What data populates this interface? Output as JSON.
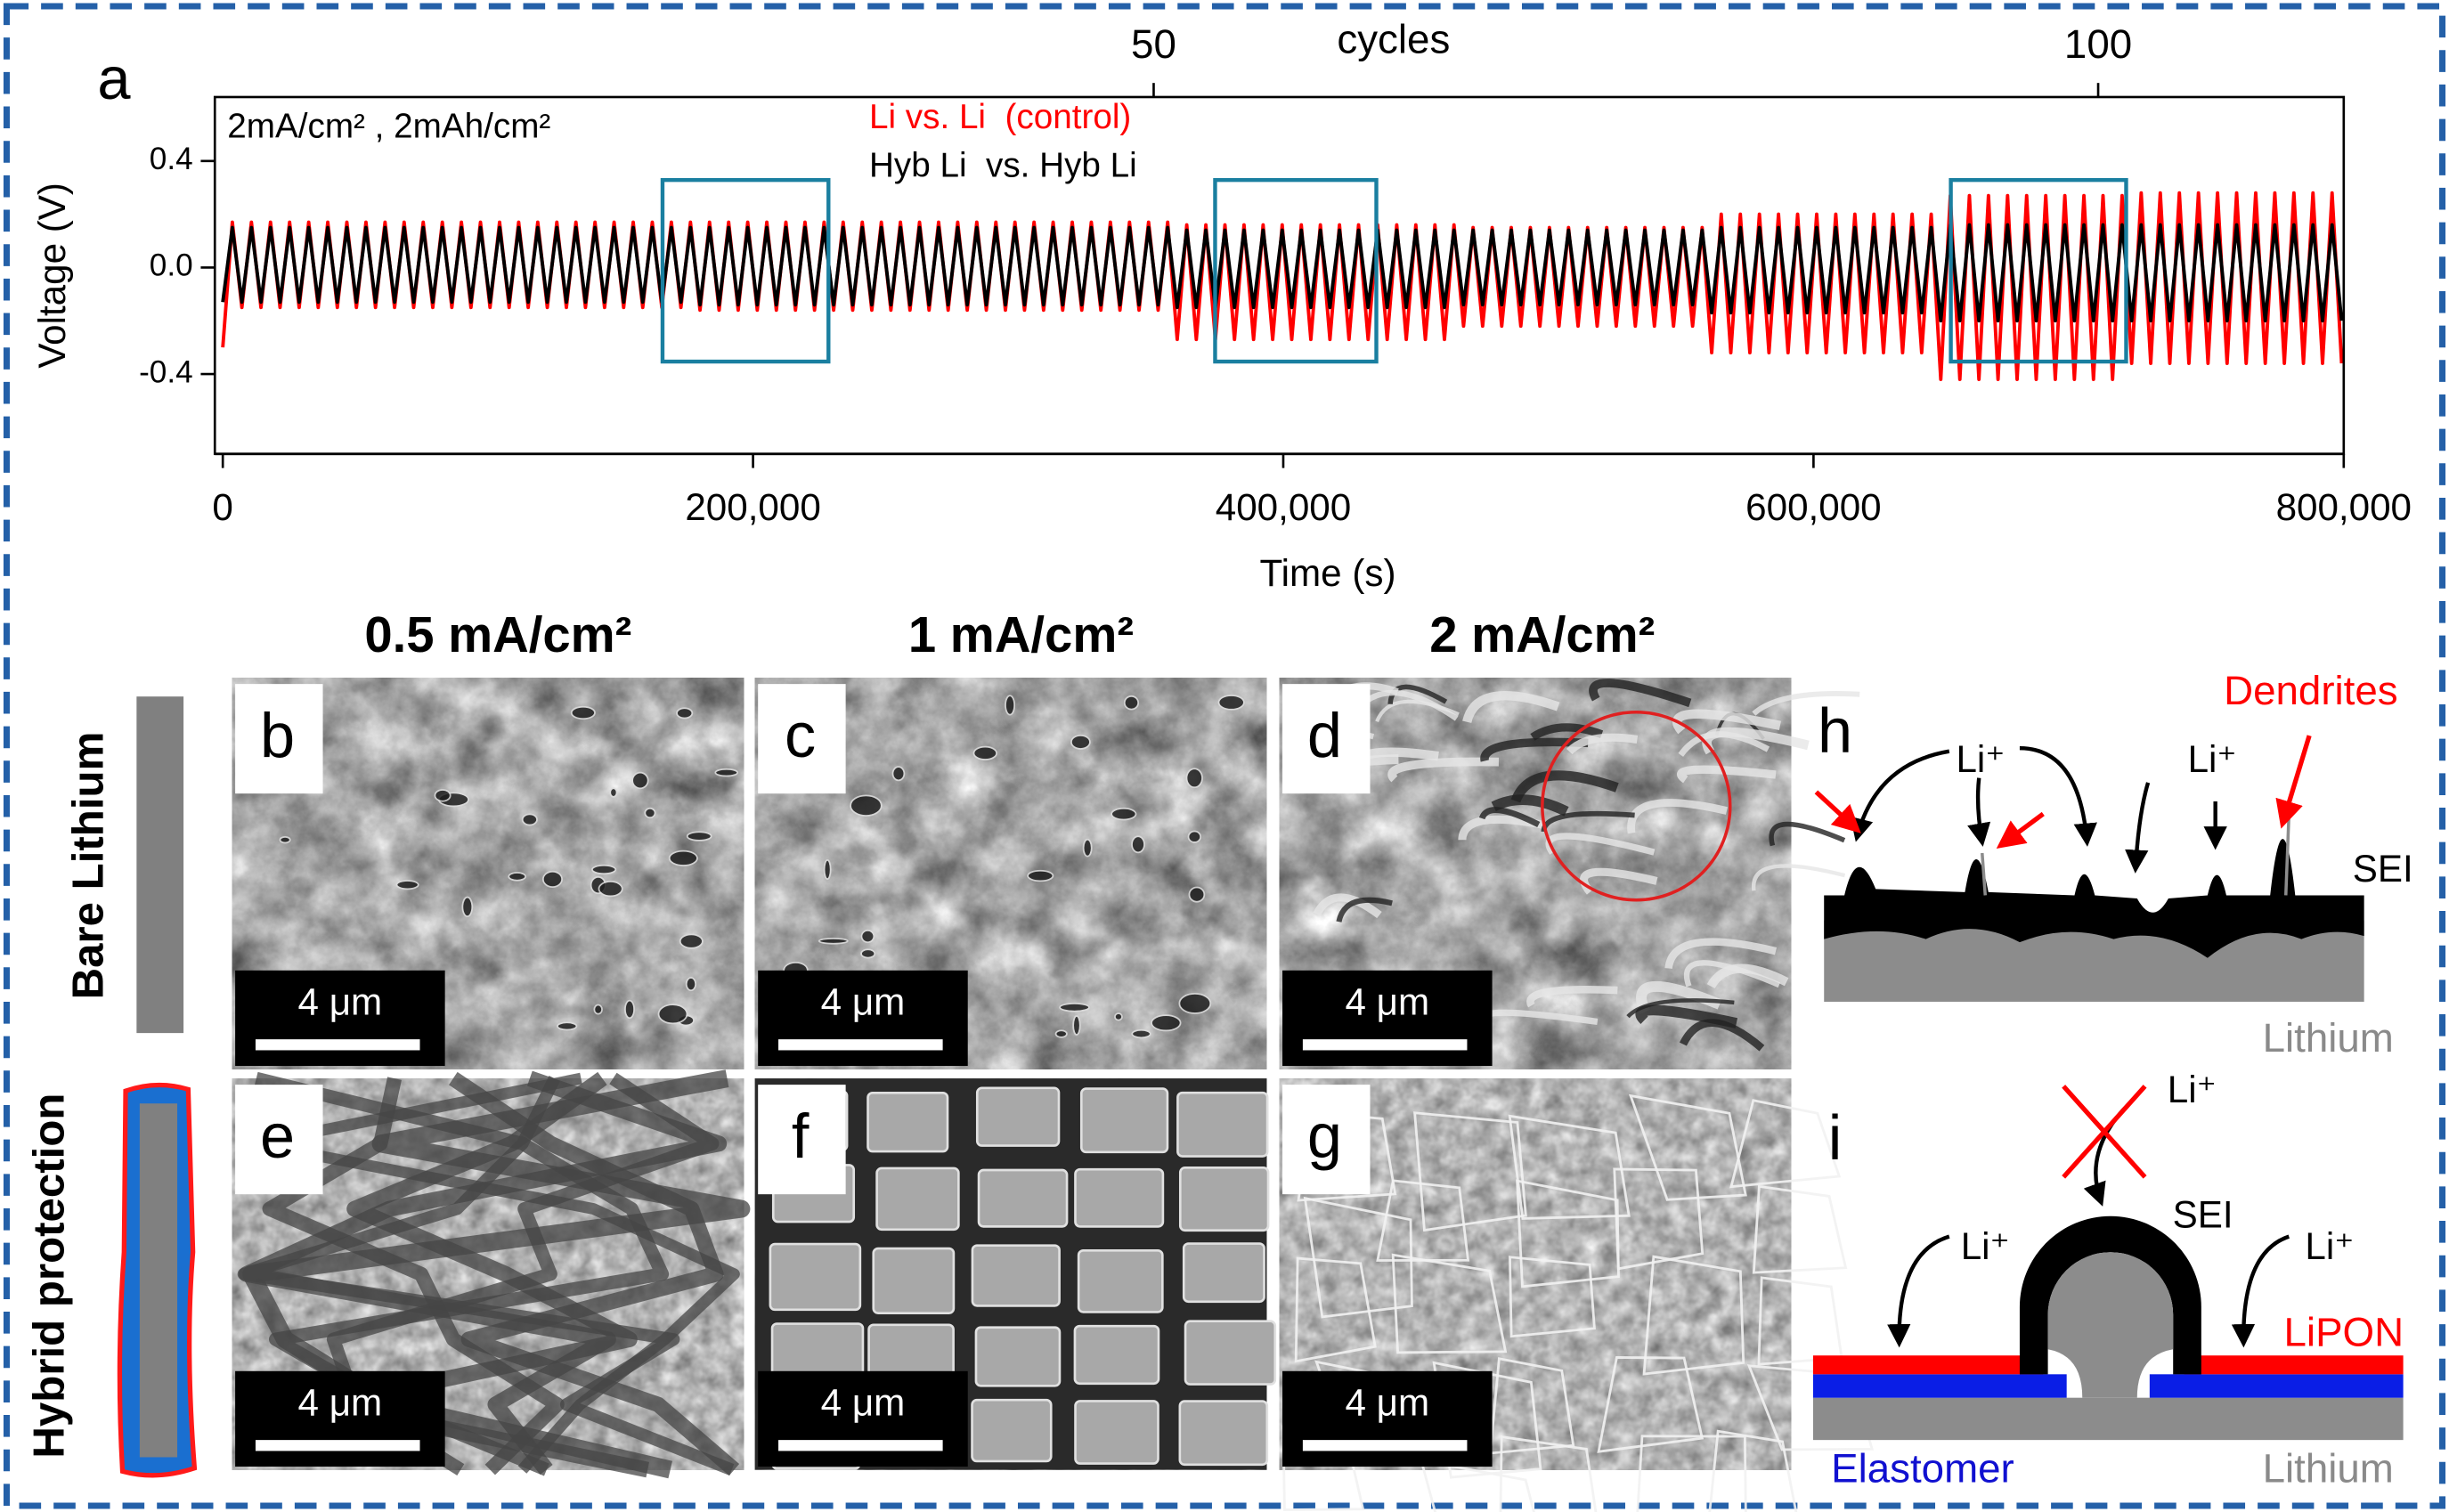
{
  "chart_data": {
    "type": "line",
    "panel_label": "a",
    "annotation": "2mA/cm² , 2mAh/cm²",
    "xlabel": "Time (s)",
    "ylabel": "Voltage (V)",
    "x2label": "cycles",
    "x": [
      0,
      3600,
      7200,
      10800,
      14400,
      18000,
      21600,
      25200,
      28800,
      32400,
      36000,
      39600,
      43200,
      46800,
      50400,
      54000,
      57600,
      61200,
      64800,
      68400,
      72000,
      75600,
      79200,
      82800,
      86400,
      90000,
      93600,
      97200,
      100800,
      104400,
      108000,
      111600,
      115200,
      118800,
      122400,
      126000,
      129600,
      133200,
      136800,
      140400,
      144000,
      147600,
      151200,
      154800,
      158400,
      162000,
      165600,
      169200,
      172800,
      176400,
      180000,
      183600,
      187200,
      190800,
      194400,
      198000,
      201600,
      205200,
      208800,
      212400,
      216000,
      219600,
      223200,
      226800,
      230400,
      234000,
      237600,
      241200,
      244800,
      248400,
      252000,
      255600,
      259200,
      262800,
      266400,
      270000,
      273600,
      277200,
      280800,
      284400,
      288000,
      291600,
      295200,
      298800,
      302400,
      306000,
      309600,
      313200,
      316800,
      320400,
      324000,
      327600,
      331200,
      334800,
      338400,
      342000,
      345600,
      349200,
      352800,
      356400,
      360000,
      363600,
      367200,
      370800,
      374400,
      378000,
      381600,
      385200,
      388800,
      392400,
      396000,
      399600,
      403200,
      406800,
      410400,
      414000,
      417600,
      421200,
      424800,
      428400,
      432000,
      435600,
      439200,
      442800,
      446400,
      450000,
      453600,
      457200,
      460800,
      464400,
      468000,
      471600,
      475200,
      478800,
      482400,
      486000,
      489600,
      493200,
      496800,
      500400,
      504000,
      507600,
      511200,
      514800,
      518400,
      522000,
      525600,
      529200,
      532800,
      536400,
      540000,
      543600,
      547200,
      550800,
      554400,
      558000,
      561600,
      565200,
      568800,
      572400,
      576000,
      579600,
      583200,
      586800,
      590400,
      594000,
      597600,
      601200,
      604800,
      608400,
      612000,
      615600,
      619200,
      622800,
      626400,
      630000,
      633600,
      637200,
      640800,
      644400,
      648000,
      651600,
      655200,
      658800,
      662400,
      666000,
      669600,
      673200,
      676800,
      680400,
      684000,
      687600,
      691200,
      694800,
      698400,
      702000,
      705600,
      709200,
      712800,
      716400,
      720000,
      723600,
      727200,
      730800,
      734400,
      738000,
      741600,
      745200,
      748800,
      752400,
      756000,
      759600,
      763200,
      766800,
      770400,
      774000,
      777600,
      781200,
      784800,
      788400,
      792000,
      795600,
      799200
    ],
    "series": [
      {
        "name": "Li vs. Li  (control)",
        "color": "#ff0000",
        "values": [
          -0.3,
          0.17,
          -0.15,
          0.17,
          -0.15,
          0.17,
          -0.15,
          0.17,
          -0.15,
          0.17,
          -0.15,
          0.17,
          -0.15,
          0.17,
          -0.15,
          0.17,
          -0.15,
          0.17,
          -0.15,
          0.17,
          -0.15,
          0.17,
          -0.15,
          0.17,
          -0.15,
          0.17,
          -0.15,
          0.17,
          -0.15,
          0.17,
          -0.15,
          0.17,
          -0.15,
          0.17,
          -0.15,
          0.17,
          -0.15,
          0.17,
          -0.15,
          0.17,
          -0.15,
          0.17,
          -0.15,
          0.17,
          -0.15,
          0.17,
          -0.15,
          0.17,
          -0.15,
          0.17,
          -0.16,
          0.17,
          -0.16,
          0.17,
          -0.16,
          0.17,
          -0.16,
          0.17,
          -0.16,
          0.17,
          -0.16,
          0.17,
          -0.16,
          0.17,
          -0.16,
          0.17,
          -0.16,
          0.17,
          -0.16,
          0.17,
          -0.16,
          0.17,
          -0.16,
          0.17,
          -0.16,
          0.17,
          -0.16,
          0.17,
          -0.16,
          0.17,
          -0.16,
          0.17,
          -0.16,
          0.17,
          -0.16,
          0.17,
          -0.16,
          0.17,
          -0.16,
          0.17,
          -0.16,
          0.17,
          -0.16,
          0.17,
          -0.16,
          0.17,
          -0.16,
          0.17,
          -0.16,
          0.17,
          -0.27,
          0.16,
          -0.27,
          0.16,
          -0.27,
          0.16,
          -0.27,
          0.16,
          -0.27,
          0.16,
          -0.27,
          0.16,
          -0.27,
          0.16,
          -0.27,
          0.16,
          -0.27,
          0.16,
          -0.27,
          0.16,
          -0.27,
          0.16,
          -0.27,
          0.16,
          -0.27,
          0.16,
          -0.27,
          0.16,
          -0.27,
          0.16,
          -0.22,
          0.15,
          -0.22,
          0.15,
          -0.22,
          0.15,
          -0.22,
          0.15,
          -0.22,
          0.15,
          -0.22,
          0.15,
          -0.22,
          0.15,
          -0.22,
          0.15,
          -0.22,
          0.15,
          -0.22,
          0.15,
          -0.22,
          0.15,
          -0.22,
          0.15,
          -0.22,
          0.15,
          -0.32,
          0.2,
          -0.32,
          0.2,
          -0.32,
          0.2,
          -0.32,
          0.2,
          -0.32,
          0.2,
          -0.32,
          0.2,
          -0.32,
          0.2,
          -0.32,
          0.2,
          -0.32,
          0.2,
          -0.32,
          0.2,
          -0.32,
          0.2,
          -0.32,
          0.2,
          -0.42,
          0.27,
          -0.42,
          0.27,
          -0.42,
          0.27,
          -0.42,
          0.27,
          -0.42,
          0.27,
          -0.42,
          0.27,
          -0.42,
          0.27,
          -0.42,
          0.27,
          -0.42,
          0.27,
          -0.42,
          0.27,
          -0.36,
          0.28,
          -0.36,
          0.28,
          -0.36,
          0.28,
          -0.36,
          0.28,
          -0.36,
          0.28,
          -0.36,
          0.28,
          -0.36,
          0.28,
          -0.36,
          0.28,
          -0.36,
          0.28,
          -0.36,
          0.28,
          -0.36,
          0.28,
          -0.36
        ]
      },
      {
        "name": "Hyb Li  vs. Hyb Li",
        "color": "#000000",
        "values": [
          -0.13,
          0.15,
          -0.13,
          0.15,
          -0.13,
          0.15,
          -0.13,
          0.15,
          -0.13,
          0.15,
          -0.13,
          0.15,
          -0.13,
          0.15,
          -0.13,
          0.15,
          -0.13,
          0.15,
          -0.13,
          0.15,
          -0.13,
          0.15,
          -0.13,
          0.15,
          -0.13,
          0.15,
          -0.13,
          0.15,
          -0.13,
          0.15,
          -0.13,
          0.15,
          -0.13,
          0.15,
          -0.13,
          0.15,
          -0.13,
          0.15,
          -0.13,
          0.15,
          -0.13,
          0.15,
          -0.13,
          0.15,
          -0.13,
          0.15,
          -0.13,
          0.15,
          -0.13,
          0.15,
          -0.14,
          0.15,
          -0.14,
          0.15,
          -0.14,
          0.15,
          -0.14,
          0.15,
          -0.14,
          0.15,
          -0.14,
          0.15,
          -0.14,
          0.15,
          -0.14,
          0.15,
          -0.14,
          0.15,
          -0.14,
          0.15,
          -0.14,
          0.15,
          -0.14,
          0.15,
          -0.14,
          0.15,
          -0.14,
          0.15,
          -0.14,
          0.15,
          -0.14,
          0.15,
          -0.14,
          0.15,
          -0.14,
          0.15,
          -0.14,
          0.15,
          -0.14,
          0.15,
          -0.14,
          0.15,
          -0.14,
          0.15,
          -0.14,
          0.15,
          -0.14,
          0.15,
          -0.14,
          0.15,
          -0.15,
          0.14,
          -0.15,
          0.14,
          -0.15,
          0.14,
          -0.15,
          0.14,
          -0.15,
          0.14,
          -0.15,
          0.14,
          -0.15,
          0.14,
          -0.15,
          0.14,
          -0.15,
          0.14,
          -0.15,
          0.14,
          -0.15,
          0.14,
          -0.15,
          0.14,
          -0.15,
          0.14,
          -0.15,
          0.14,
          -0.15,
          0.14,
          -0.14,
          0.14,
          -0.14,
          0.14,
          -0.14,
          0.14,
          -0.14,
          0.14,
          -0.14,
          0.14,
          -0.14,
          0.14,
          -0.14,
          0.14,
          -0.14,
          0.14,
          -0.14,
          0.14,
          -0.14,
          0.14,
          -0.14,
          0.14,
          -0.14,
          0.14,
          -0.14,
          0.14,
          -0.17,
          0.15,
          -0.17,
          0.15,
          -0.17,
          0.15,
          -0.17,
          0.15,
          -0.17,
          0.15,
          -0.17,
          0.15,
          -0.17,
          0.15,
          -0.17,
          0.15,
          -0.17,
          0.15,
          -0.17,
          0.15,
          -0.17,
          0.15,
          -0.17,
          0.15,
          -0.2,
          0.16,
          -0.2,
          0.16,
          -0.2,
          0.16,
          -0.2,
          0.16,
          -0.2,
          0.16,
          -0.2,
          0.16,
          -0.2,
          0.16,
          -0.2,
          0.16,
          -0.2,
          0.16,
          -0.2,
          0.16,
          -0.2,
          0.16,
          -0.2,
          0.16,
          -0.2,
          0.16,
          -0.2,
          0.16,
          -0.2,
          0.16,
          -0.2,
          0.16,
          -0.2,
          0.16,
          -0.2,
          0.16,
          -0.2,
          0.16,
          -0.2,
          0.16,
          -0.2,
          0.16,
          -0.2
        ]
      }
    ],
    "xlim": [
      -3000,
      800000
    ],
    "xticks": [
      0,
      {
        "value": 200000,
        "label": "200,000"
      },
      {
        "value": 400000,
        "label": "400,000"
      },
      {
        "value": 600000,
        "label": "600,000"
      },
      {
        "value": 800000,
        "label": "800,000"
      }
    ],
    "ylim": [
      -0.7,
      0.64
    ],
    "yticks": [
      -0.4,
      {
        "value": 0,
        "label": "0.0"
      },
      0.4
    ],
    "x2lim": [
      0.3,
      113
    ],
    "x2ticks": [
      50,
      100
    ]
  },
  "panels": {
    "columns": [
      "0.5 mA/cm²",
      "1 mA/cm²",
      "2 mA/cm²"
    ],
    "rows": [
      "Bare Lithium",
      "Hybrid protection"
    ],
    "images": [
      {
        "label": "b",
        "scale_bar": "4 μm"
      },
      {
        "label": "c",
        "scale_bar": "4 μm"
      },
      {
        "label": "d",
        "scale_bar": "4 μm"
      },
      {
        "label": "e",
        "scale_bar": "4 μm"
      },
      {
        "label": "f",
        "scale_bar": "4 μm"
      },
      {
        "label": "g",
        "scale_bar": "4 μm"
      }
    ],
    "h": {
      "label": "h",
      "dendrites": "Dendrites",
      "ions": [
        "Li⁺",
        "Li⁺"
      ],
      "sei": "SEI",
      "substrate": "Lithium"
    },
    "i": {
      "label": "i",
      "ions": [
        "Li⁺",
        "Li⁺",
        "Li⁺"
      ],
      "sei": "SEI",
      "coating": "LiPON",
      "polymer": "Elastomer",
      "substrate": "Lithium"
    }
  }
}
